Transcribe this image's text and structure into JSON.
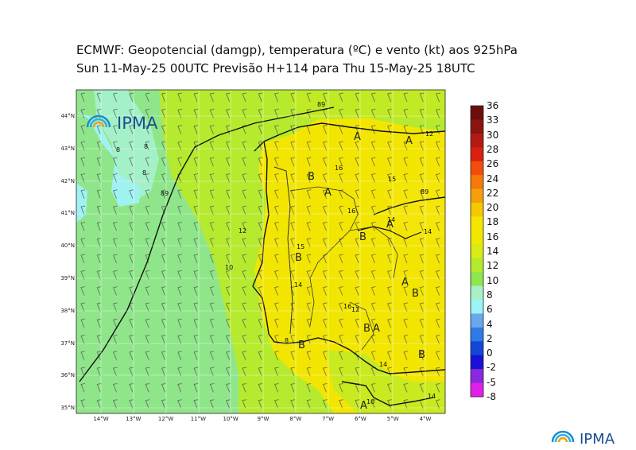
{
  "title": {
    "line1": "ECMWF:  Geopotencial (damgp), temperatura (ºC) e vento (kt) aos 925hPa",
    "line2": "Sun 11-May-25 00UTC Previsão H+114 para Thu 15-May-25 18UTC"
  },
  "map": {
    "lat_labels": [
      "44°N",
      "43°N",
      "42°N",
      "41°N",
      "40°N",
      "39°N",
      "38°N",
      "37°N",
      "36°N",
      "35°N"
    ],
    "lon_labels": [
      "14°W",
      "13°W",
      "12°W",
      "11°W",
      "10°W",
      "9°W",
      "8°W",
      "7°W",
      "6°W",
      "5°W",
      "4°W"
    ],
    "pressure_centers": [
      "A",
      "A",
      "B",
      "A",
      "B",
      "A",
      "B",
      "A",
      "B",
      "B",
      "A",
      "B",
      "B",
      "A"
    ],
    "contour_labels": [
      "12",
      "16",
      "15",
      "16",
      "14",
      "14",
      "12",
      "15",
      "14",
      "16",
      "10",
      "14",
      "14",
      "10",
      "8",
      "8",
      "8",
      "12",
      "89",
      "89",
      "89",
      "8"
    ],
    "land_color": "#f2e600",
    "sea_color": "#8fe68a"
  },
  "colorbar": {
    "labels": [
      "36",
      "33",
      "30",
      "28",
      "26",
      "24",
      "22",
      "20",
      "18",
      "16",
      "14",
      "12",
      "10",
      "8",
      "6",
      "4",
      "2",
      "0",
      "-2",
      "-5",
      "-8"
    ],
    "colors": [
      "#6b0e0e",
      "#8a1410",
      "#b01a12",
      "#d91f10",
      "#f24d0c",
      "#f57a0a",
      "#f5a00a",
      "#f5c800",
      "#f5e600",
      "#f0e800",
      "#d8ec14",
      "#b4ea2c",
      "#8ee650",
      "#a8f0c8",
      "#9cf5f5",
      "#6aa8ee",
      "#2e7ae8",
      "#1446d8",
      "#1a10d8",
      "#8a28e0",
      "#e020e8"
    ]
  },
  "logos": {
    "map_logo": "IPMA",
    "footer_logo": "IPMA"
  }
}
